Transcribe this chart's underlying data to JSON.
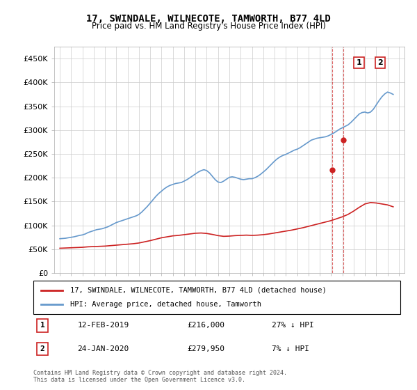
{
  "title": "17, SWINDALE, WILNECOTE, TAMWORTH, B77 4LD",
  "subtitle": "Price paid vs. HM Land Registry's House Price Index (HPI)",
  "ylabel": "",
  "yticks": [
    0,
    50000,
    100000,
    150000,
    200000,
    250000,
    300000,
    350000,
    400000,
    450000
  ],
  "ytick_labels": [
    "£0",
    "£50K",
    "£100K",
    "£150K",
    "£200K",
    "£250K",
    "£300K",
    "£350K",
    "£400K",
    "£450K"
  ],
  "xmin": 1994.5,
  "xmax": 2025.5,
  "ymin": 0,
  "ymax": 475000,
  "hpi_color": "#6699cc",
  "price_color": "#cc2222",
  "vline_color": "#cc2222",
  "legend_label_price": "17, SWINDALE, WILNECOTE, TAMWORTH, B77 4LD (detached house)",
  "legend_label_hpi": "HPI: Average price, detached house, Tamworth",
  "sale1_year": 2019.11,
  "sale1_price": 216000,
  "sale1_label": "1",
  "sale1_date": "12-FEB-2019",
  "sale1_pct": "27% ↓ HPI",
  "sale2_year": 2020.07,
  "sale2_price": 279950,
  "sale2_label": "2",
  "sale2_date": "24-JAN-2020",
  "sale2_pct": "7% ↓ HPI",
  "footer": "Contains HM Land Registry data © Crown copyright and database right 2024.\nThis data is licensed under the Open Government Licence v3.0.",
  "hpi_years": [
    1995,
    1995.25,
    1995.5,
    1995.75,
    1996,
    1996.25,
    1996.5,
    1996.75,
    1997,
    1997.25,
    1997.5,
    1997.75,
    1998,
    1998.25,
    1998.5,
    1998.75,
    1999,
    1999.25,
    1999.5,
    1999.75,
    2000,
    2000.25,
    2000.5,
    2000.75,
    2001,
    2001.25,
    2001.5,
    2001.75,
    2002,
    2002.25,
    2002.5,
    2002.75,
    2003,
    2003.25,
    2003.5,
    2003.75,
    2004,
    2004.25,
    2004.5,
    2004.75,
    2005,
    2005.25,
    2005.5,
    2005.75,
    2006,
    2006.25,
    2006.5,
    2006.75,
    2007,
    2007.25,
    2007.5,
    2007.75,
    2008,
    2008.25,
    2008.5,
    2008.75,
    2009,
    2009.25,
    2009.5,
    2009.75,
    2010,
    2010.25,
    2010.5,
    2010.75,
    2011,
    2011.25,
    2011.5,
    2011.75,
    2012,
    2012.25,
    2012.5,
    2012.75,
    2013,
    2013.25,
    2013.5,
    2013.75,
    2014,
    2014.25,
    2014.5,
    2014.75,
    2015,
    2015.25,
    2015.5,
    2015.75,
    2016,
    2016.25,
    2016.5,
    2016.75,
    2017,
    2017.25,
    2017.5,
    2017.75,
    2018,
    2018.25,
    2018.5,
    2018.75,
    2019,
    2019.25,
    2019.5,
    2019.75,
    2020,
    2020.25,
    2020.5,
    2020.75,
    2021,
    2021.25,
    2021.5,
    2021.75,
    2022,
    2022.25,
    2022.5,
    2022.75,
    2023,
    2023.25,
    2023.5,
    2023.75,
    2024,
    2024.25,
    2024.5
  ],
  "hpi_values": [
    72000,
    72500,
    73000,
    74000,
    75000,
    76000,
    77500,
    79000,
    80000,
    82000,
    85000,
    87000,
    89000,
    91000,
    92000,
    93000,
    95000,
    97000,
    100000,
    103000,
    106000,
    108000,
    110000,
    112000,
    114000,
    116000,
    118000,
    120000,
    123000,
    128000,
    134000,
    140000,
    147000,
    154000,
    161000,
    167000,
    172000,
    177000,
    181000,
    184000,
    186000,
    188000,
    189000,
    190000,
    193000,
    196000,
    200000,
    204000,
    208000,
    212000,
    215000,
    217000,
    215000,
    210000,
    203000,
    196000,
    191000,
    190000,
    193000,
    197000,
    201000,
    202000,
    201000,
    199000,
    197000,
    196000,
    197000,
    198000,
    198000,
    200000,
    203000,
    207000,
    212000,
    217000,
    223000,
    229000,
    235000,
    240000,
    244000,
    247000,
    249000,
    252000,
    255000,
    258000,
    260000,
    263000,
    267000,
    271000,
    275000,
    279000,
    281000,
    283000,
    284000,
    285000,
    286000,
    288000,
    291000,
    294000,
    298000,
    302000,
    305000,
    308000,
    311000,
    316000,
    322000,
    328000,
    334000,
    337000,
    338000,
    336000,
    338000,
    344000,
    353000,
    362000,
    370000,
    376000,
    380000,
    378000,
    375000
  ],
  "price_years": [
    1995,
    1995.5,
    1996,
    1996.5,
    1997,
    1997.5,
    1998,
    1998.5,
    1999,
    1999.5,
    2000,
    2000.5,
    2001,
    2001.5,
    2002,
    2002.5,
    2003,
    2003.5,
    2004,
    2004.5,
    2005,
    2005.5,
    2006,
    2006.5,
    2007,
    2007.5,
    2008,
    2008.5,
    2009,
    2009.5,
    2010,
    2010.5,
    2011,
    2011.5,
    2012,
    2012.5,
    2013,
    2013.5,
    2014,
    2014.5,
    2015,
    2015.5,
    2016,
    2016.5,
    2017,
    2017.5,
    2018,
    2018.5,
    2019,
    2019.5,
    2020,
    2020.5,
    2021,
    2021.5,
    2022,
    2022.5,
    2023,
    2023.5,
    2024,
    2024.25,
    2024.5
  ],
  "price_values": [
    52000,
    52500,
    53000,
    53500,
    54000,
    55000,
    55500,
    56000,
    56500,
    57500,
    58500,
    59500,
    60500,
    61500,
    63000,
    65500,
    68000,
    71000,
    74000,
    76000,
    78000,
    79000,
    80500,
    82000,
    83500,
    84000,
    83000,
    81000,
    78500,
    77000,
    77500,
    78500,
    79000,
    79500,
    79000,
    79500,
    80500,
    82000,
    84000,
    86000,
    88000,
    90000,
    92500,
    95000,
    98000,
    101000,
    104000,
    107000,
    110000,
    114000,
    118000,
    123000,
    130000,
    138000,
    145000,
    148000,
    147000,
    145000,
    143000,
    141000,
    139000
  ]
}
